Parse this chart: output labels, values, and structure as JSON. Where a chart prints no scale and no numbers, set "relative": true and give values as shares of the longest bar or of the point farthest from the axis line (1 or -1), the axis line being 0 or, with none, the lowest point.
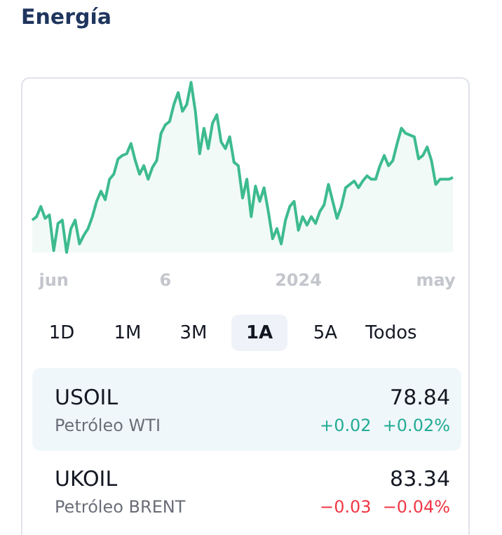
{
  "chart_data": {
    "type": "area",
    "title": "Energía",
    "relative": true,
    "categories": [
      null,
      null,
      null,
      null,
      null,
      "jun",
      null,
      null,
      null,
      null,
      null,
      null,
      null,
      null,
      null,
      null,
      null,
      null,
      null,
      null,
      null,
      null,
      null,
      null,
      null,
      null,
      null,
      null,
      null,
      null,
      null,
      "6",
      null,
      null,
      null,
      null,
      null,
      null,
      null,
      null,
      null,
      null,
      null,
      null,
      null,
      null,
      null,
      null,
      null,
      null,
      null,
      null,
      null,
      null,
      null,
      null,
      null,
      null,
      null,
      null,
      null,
      null,
      "2024",
      null,
      null,
      null,
      null,
      null,
      null,
      null,
      null,
      null,
      null,
      null,
      null,
      null,
      null,
      null,
      null,
      null,
      null,
      null,
      null,
      null,
      null,
      null,
      null,
      null,
      null,
      null,
      null,
      null,
      null,
      null,
      "may",
      null,
      null,
      null,
      null
    ],
    "series": [
      {
        "color": "#3dbb8f",
        "values": [
          0.19,
          0.21,
          0.27,
          0.2,
          0.22,
          0.01,
          0.17,
          0.19,
          0,
          0.14,
          0.19,
          0.05,
          0.1,
          0.14,
          0.21,
          0.3,
          0.36,
          0.31,
          0.43,
          0.46,
          0.55,
          0.57,
          0.58,
          0.64,
          0.54,
          0.46,
          0.51,
          0.43,
          0.5,
          0.54,
          0.7,
          0.75,
          0.77,
          0.87,
          0.94,
          0.83,
          0.87,
          1,
          0.83,
          0.58,
          0.73,
          0.61,
          0.76,
          0.81,
          0.65,
          0.61,
          0.68,
          0.53,
          0.51,
          0.32,
          0.43,
          0.21,
          0.39,
          0.3,
          0.38,
          0.24,
          0.08,
          0.14,
          0.05,
          0.19,
          0.27,
          0.3,
          0.13,
          0.21,
          0.16,
          0.21,
          0.17,
          0.24,
          0.28,
          0.4,
          0.3,
          0.2,
          0.27,
          0.38,
          0.4,
          0.42,
          0.38,
          0.42,
          0.45,
          0.43,
          0.43,
          0.51,
          0.57,
          0.51,
          0.54,
          0.64,
          0.73,
          0.7,
          0.69,
          0.68,
          0.55,
          0.57,
          0.62,
          0.54,
          0.4,
          0.43,
          0.43,
          0.43,
          0.44
        ]
      }
    ],
    "annotations": [
      "1D",
      "1M",
      "3M",
      "1A",
      "5A",
      "Todos",
      "USOIL",
      "78.84",
      "Petróleo WTI",
      "+0.02",
      "+0.02%",
      "UKOIL",
      "83.34",
      "Petróleo BRENT",
      "−0.03",
      "−0.04%"
    ]
  }
}
